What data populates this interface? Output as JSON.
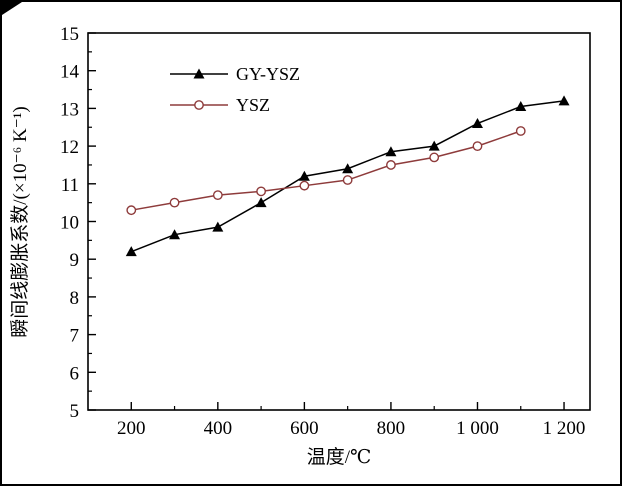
{
  "chart_data": {
    "type": "line",
    "title": "",
    "xlabel": "温度/℃",
    "ylabel": "瞬间线膨胀系数/(×10⁻⁶ K⁻¹)",
    "xlim": [
      100,
      1260
    ],
    "ylim": [
      5,
      15
    ],
    "grid": false,
    "legend_position": "inside-top-left",
    "x_major_ticks": [
      200,
      400,
      600,
      800,
      1000,
      1200
    ],
    "x_major_tick_labels": [
      "200",
      "400",
      "600",
      "800",
      "1 000",
      "1 200"
    ],
    "x_minor_ticks": [
      300,
      500,
      700,
      900,
      1100
    ],
    "y_major_ticks": [
      5,
      6,
      7,
      8,
      9,
      10,
      11,
      12,
      13,
      14,
      15
    ],
    "y_major_tick_labels": [
      "5",
      "6",
      "7",
      "8",
      "9",
      "10",
      "11",
      "12",
      "13",
      "14",
      "15"
    ],
    "y_minor_ticks": [
      5.5,
      6.5,
      7.5,
      8.5,
      9.5,
      10.5,
      11.5,
      12.5,
      13.5,
      14.5
    ],
    "series": [
      {
        "name": "GY-YSZ",
        "color": "#000000",
        "marker": "filled-triangle",
        "x": [
          200,
          300,
          400,
          500,
          600,
          700,
          800,
          900,
          1000,
          1100,
          1200
        ],
        "y": [
          9.2,
          9.65,
          9.85,
          10.5,
          11.2,
          11.4,
          11.85,
          12.0,
          12.6,
          13.05,
          13.2
        ]
      },
      {
        "name": "YSZ",
        "color": "#8e3b3b",
        "marker": "open-circle",
        "x": [
          200,
          300,
          400,
          500,
          600,
          700,
          800,
          900,
          1000,
          1100
        ],
        "y": [
          10.3,
          10.5,
          10.7,
          10.8,
          10.95,
          11.1,
          11.5,
          11.7,
          12.0,
          12.4
        ]
      }
    ]
  }
}
